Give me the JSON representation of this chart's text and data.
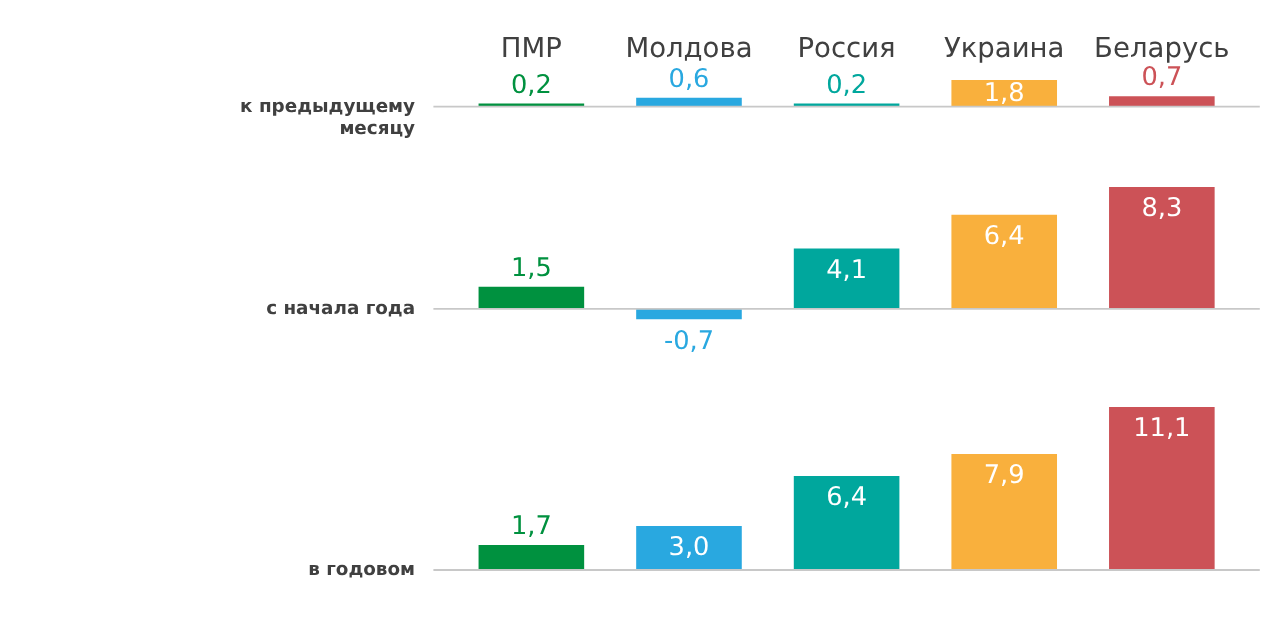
{
  "chart_data": [
    {
      "type": "bar",
      "ylabel": "к предыдущему\nмесяцу",
      "categories": [
        "ПМР",
        "Молдова",
        "Россия",
        "Украина",
        "Беларусь"
      ],
      "colors": [
        "#00913f",
        "#29a8e0",
        "#00a79d",
        "#f9b03d",
        "#cc5257"
      ],
      "values": [
        0.2,
        0.6,
        0.2,
        1.8,
        0.7
      ],
      "value_labels": [
        "0,2",
        "0,6",
        "0,2",
        "1,8",
        "0,7"
      ],
      "tick_labels": "x",
      "grid": false
    },
    {
      "type": "bar",
      "ylabel": "с начала года",
      "categories": [
        null,
        null,
        null,
        null,
        null
      ],
      "colors": [
        "#00913f",
        "#29a8e0",
        "#00a79d",
        "#f9b03d",
        "#cc5257"
      ],
      "values": [
        1.5,
        -0.7,
        4.1,
        6.4,
        8.3
      ],
      "value_labels": [
        "1,5",
        "-0,7",
        "4,1",
        "6,4",
        "8,3"
      ],
      "tick_labels": false,
      "grid": false
    },
    {
      "type": "bar",
      "ylabel": "в годовом",
      "categories": [
        null,
        null,
        null,
        null,
        null
      ],
      "colors": [
        "#00913f",
        "#29a8e0",
        "#00a79d",
        "#f9b03d",
        "#cc5257"
      ],
      "values": [
        1.7,
        3.0,
        6.4,
        7.9,
        11.1
      ],
      "value_labels": [
        "1,7",
        "3,0",
        "6,4",
        "7,9",
        "11,1"
      ],
      "tick_labels": false,
      "grid": false
    }
  ]
}
